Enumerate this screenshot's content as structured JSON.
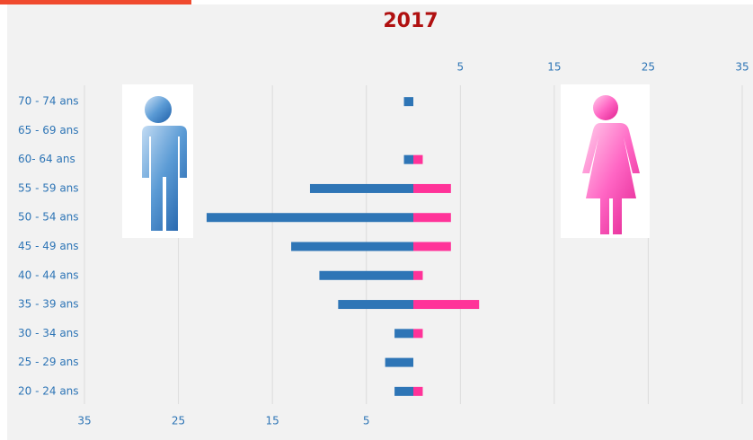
{
  "chart_data": {
    "type": "pyramid",
    "title": "2017",
    "categories": [
      "70 - 74 ans",
      "65 - 69 ans",
      "60- 64 ans",
      "55 - 59 ans",
      "50 - 54 ans",
      "45 - 49 ans",
      "40 - 44 ans",
      "35 - 39 ans",
      "30 - 34 ans",
      "25 - 29 ans",
      "20 - 24 ans"
    ],
    "series": [
      {
        "color": "#2e75b6",
        "values": [
          1,
          0,
          1,
          11,
          22,
          13,
          10,
          8,
          2,
          3,
          2
        ]
      },
      {
        "color": "#ff3399",
        "values": [
          0,
          0,
          1,
          4,
          4,
          4,
          1,
          7,
          1,
          0,
          1
        ]
      }
    ],
    "xlim": [
      0,
      35
    ],
    "xticks": [
      5,
      15,
      25,
      35
    ],
    "grid": true
  }
}
